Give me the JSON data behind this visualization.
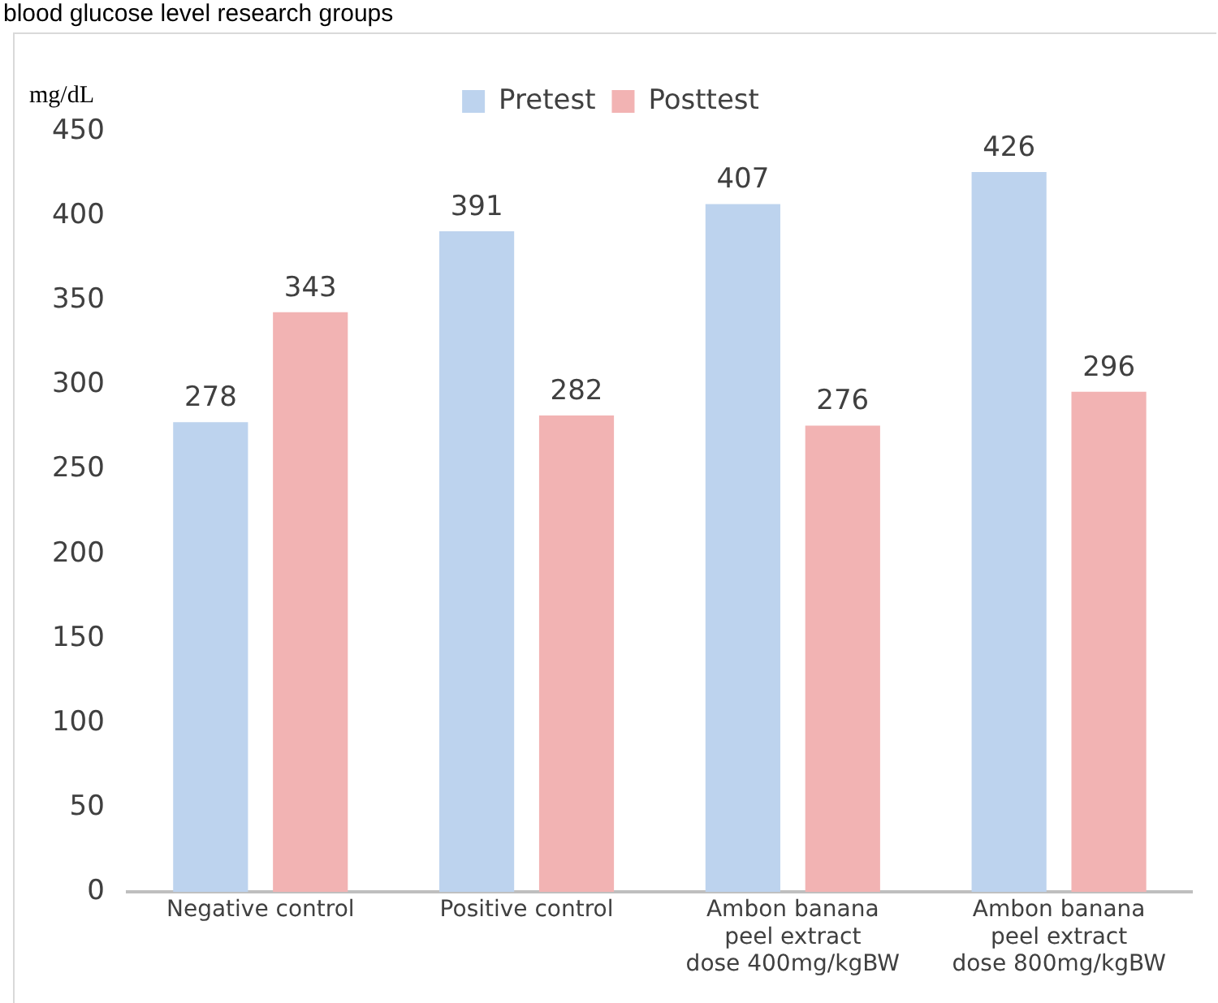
{
  "chart_data": {
    "type": "bar",
    "title": "blood glucose level research groups",
    "ylabel": "mg/dL",
    "categories": [
      "Negative control",
      "Positive control",
      "Ambon banana peel extract dose 400mg/kgBW",
      "Ambon banana peel extract dose 800mg/kgBW"
    ],
    "series": [
      {
        "name": "Pretest",
        "color": "#bdd3ee",
        "values": [
          278,
          391,
          407,
          426
        ]
      },
      {
        "name": "Posttest",
        "color": "#f2b3b3",
        "values": [
          343,
          282,
          276,
          296
        ]
      }
    ],
    "ylim": [
      0,
      450
    ],
    "yticks": [
      0,
      50,
      100,
      150,
      200,
      250,
      300,
      350,
      400,
      450
    ],
    "grid": false,
    "legend": "top",
    "data_labels": true
  }
}
